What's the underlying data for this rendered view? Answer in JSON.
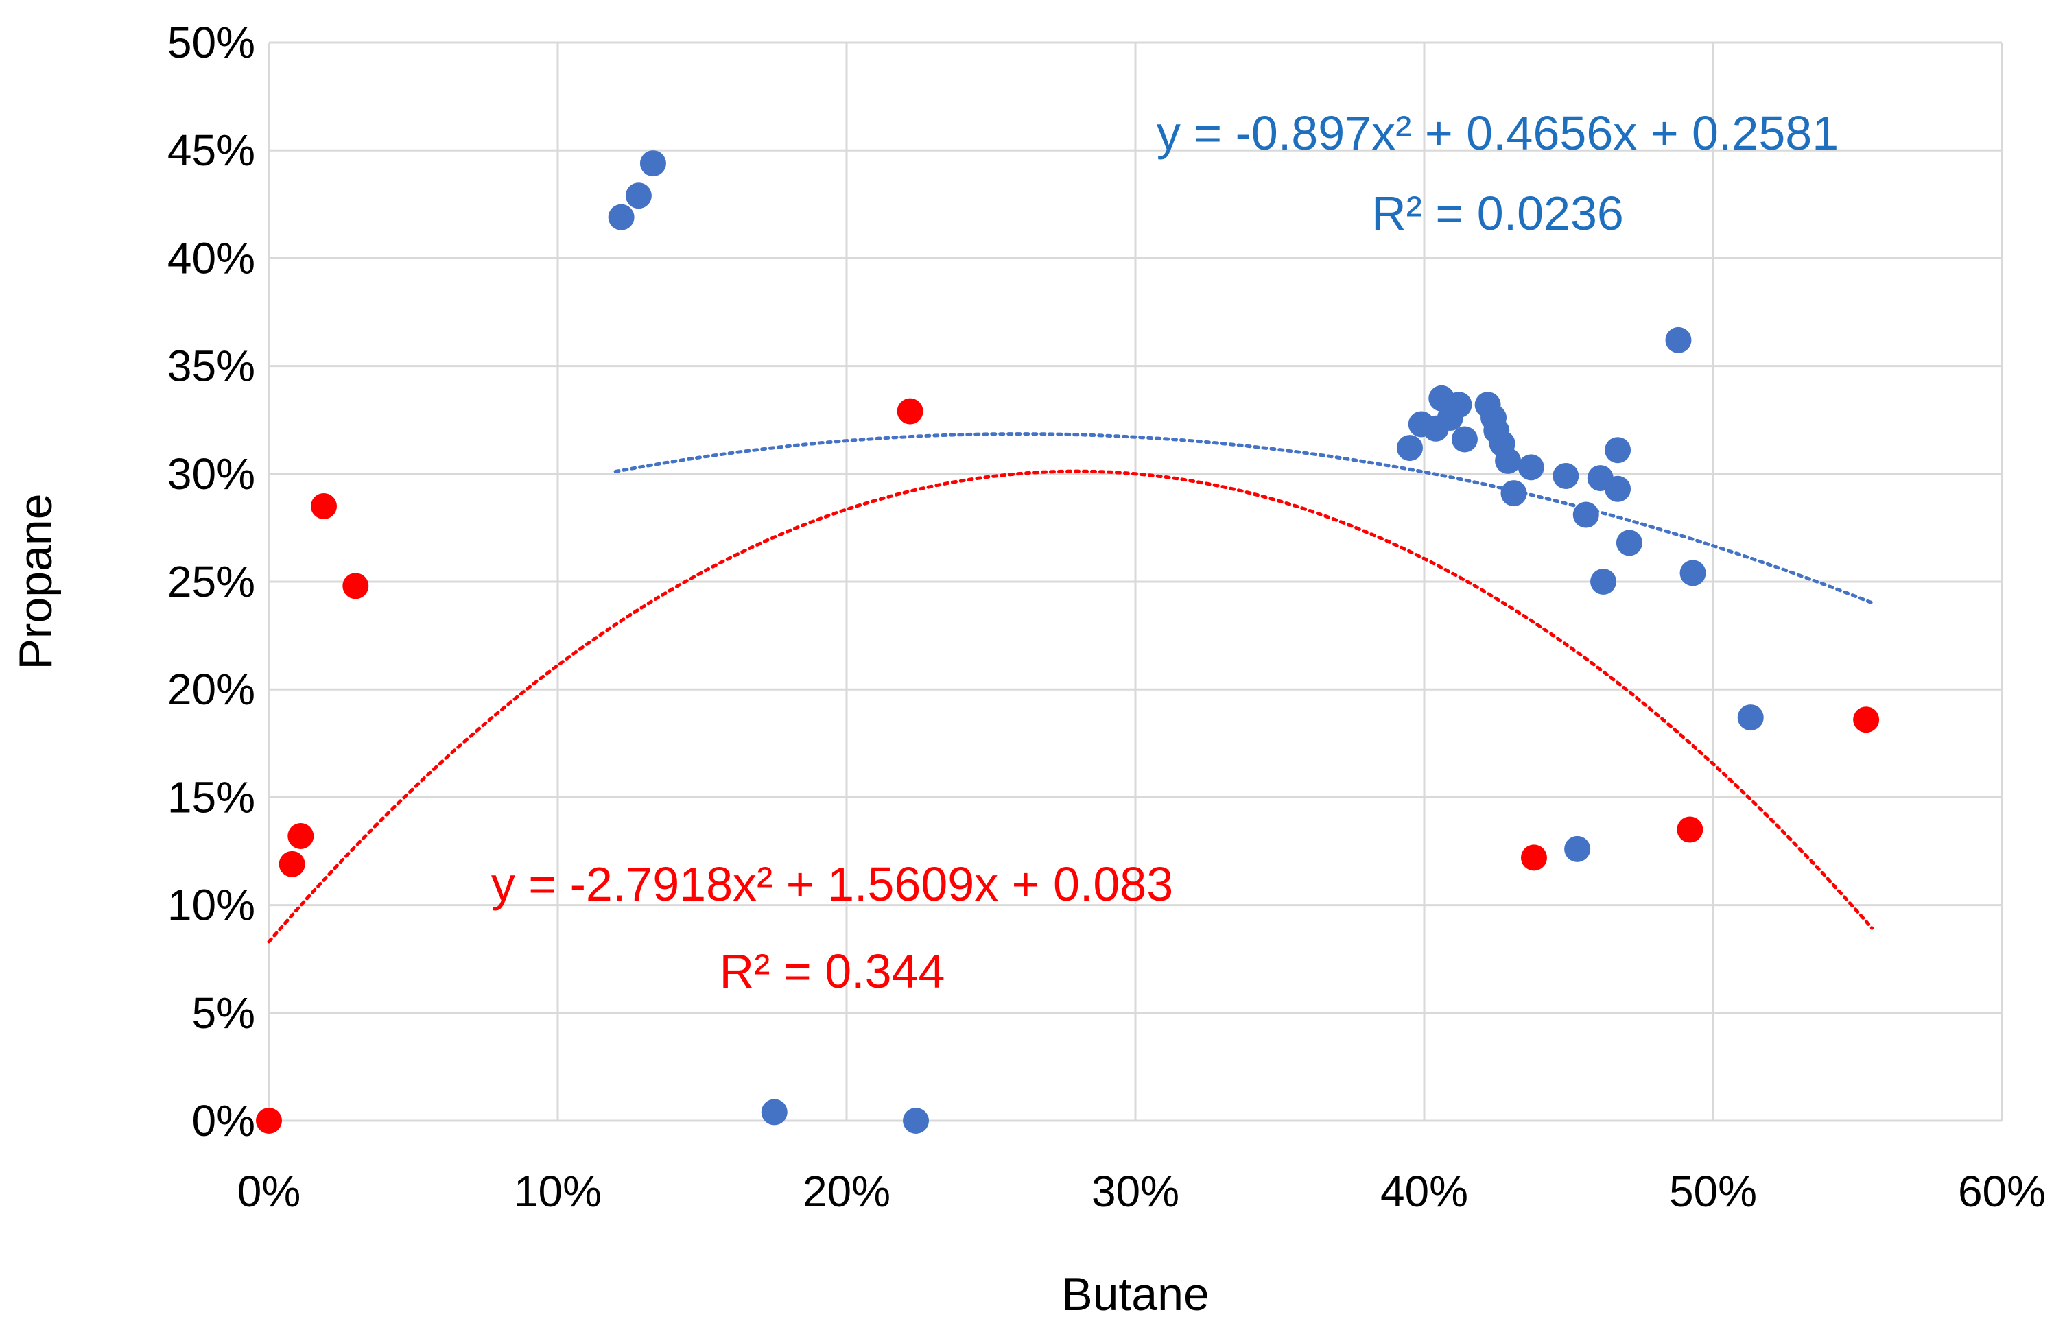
{
  "chart_data": {
    "type": "scatter",
    "title": "",
    "xlabel": "Butane",
    "ylabel": "Propane",
    "xlim": [
      0,
      0.6
    ],
    "ylim": [
      0,
      0.5
    ],
    "x_ticks": [
      0,
      0.1,
      0.2,
      0.3,
      0.4,
      0.5,
      0.6
    ],
    "x_tick_labels": [
      "0%",
      "10%",
      "20%",
      "30%",
      "40%",
      "50%",
      "60%"
    ],
    "y_ticks": [
      0,
      0.05,
      0.1,
      0.15,
      0.2,
      0.25,
      0.3,
      0.35,
      0.4,
      0.45,
      0.5
    ],
    "y_tick_labels": [
      "0%",
      "5%",
      "10%",
      "15%",
      "20%",
      "25%",
      "30%",
      "35%",
      "40%",
      "45%",
      "50%"
    ],
    "grid": true,
    "legend": "none",
    "series": [
      {
        "name": "blue",
        "color": "#4472C4",
        "points": [
          [
            0.122,
            0.419
          ],
          [
            0.128,
            0.429
          ],
          [
            0.133,
            0.444
          ],
          [
            0.175,
            0.004
          ],
          [
            0.224,
            0.0
          ],
          [
            0.395,
            0.312
          ],
          [
            0.399,
            0.323
          ],
          [
            0.404,
            0.321
          ],
          [
            0.406,
            0.335
          ],
          [
            0.409,
            0.326
          ],
          [
            0.412,
            0.332
          ],
          [
            0.414,
            0.316
          ],
          [
            0.422,
            0.332
          ],
          [
            0.424,
            0.326
          ],
          [
            0.425,
            0.32
          ],
          [
            0.427,
            0.314
          ],
          [
            0.429,
            0.306
          ],
          [
            0.431,
            0.291
          ],
          [
            0.437,
            0.303
          ],
          [
            0.449,
            0.299
          ],
          [
            0.453,
            0.126
          ],
          [
            0.456,
            0.281
          ],
          [
            0.461,
            0.298
          ],
          [
            0.462,
            0.25
          ],
          [
            0.467,
            0.293
          ],
          [
            0.467,
            0.311
          ],
          [
            0.471,
            0.268
          ],
          [
            0.488,
            0.362
          ],
          [
            0.493,
            0.254
          ],
          [
            0.513,
            0.187
          ]
        ],
        "trendline": {
          "type": "polynomial",
          "coefficients": [
            -0.897,
            0.4656,
            0.2581
          ],
          "x_range": [
            0.12,
            0.555
          ],
          "equation": "y = -0.897x² + 0.4656x + 0.2581",
          "r2": "R² = 0.0236"
        }
      },
      {
        "name": "red",
        "color": "#FF0000",
        "points": [
          [
            0.0,
            0.0
          ],
          [
            0.008,
            0.119
          ],
          [
            0.011,
            0.132
          ],
          [
            0.019,
            0.285
          ],
          [
            0.03,
            0.248
          ],
          [
            0.222,
            0.329
          ],
          [
            0.438,
            0.122
          ],
          [
            0.492,
            0.135
          ],
          [
            0.553,
            0.186
          ]
        ],
        "trendline": {
          "type": "polynomial",
          "coefficients": [
            -2.7918,
            1.5609,
            0.083
          ],
          "x_range": [
            0.0,
            0.555
          ],
          "equation": "y = -2.7918x² + 1.5609x + 0.083",
          "r2": "R² = 0.344"
        }
      }
    ]
  }
}
